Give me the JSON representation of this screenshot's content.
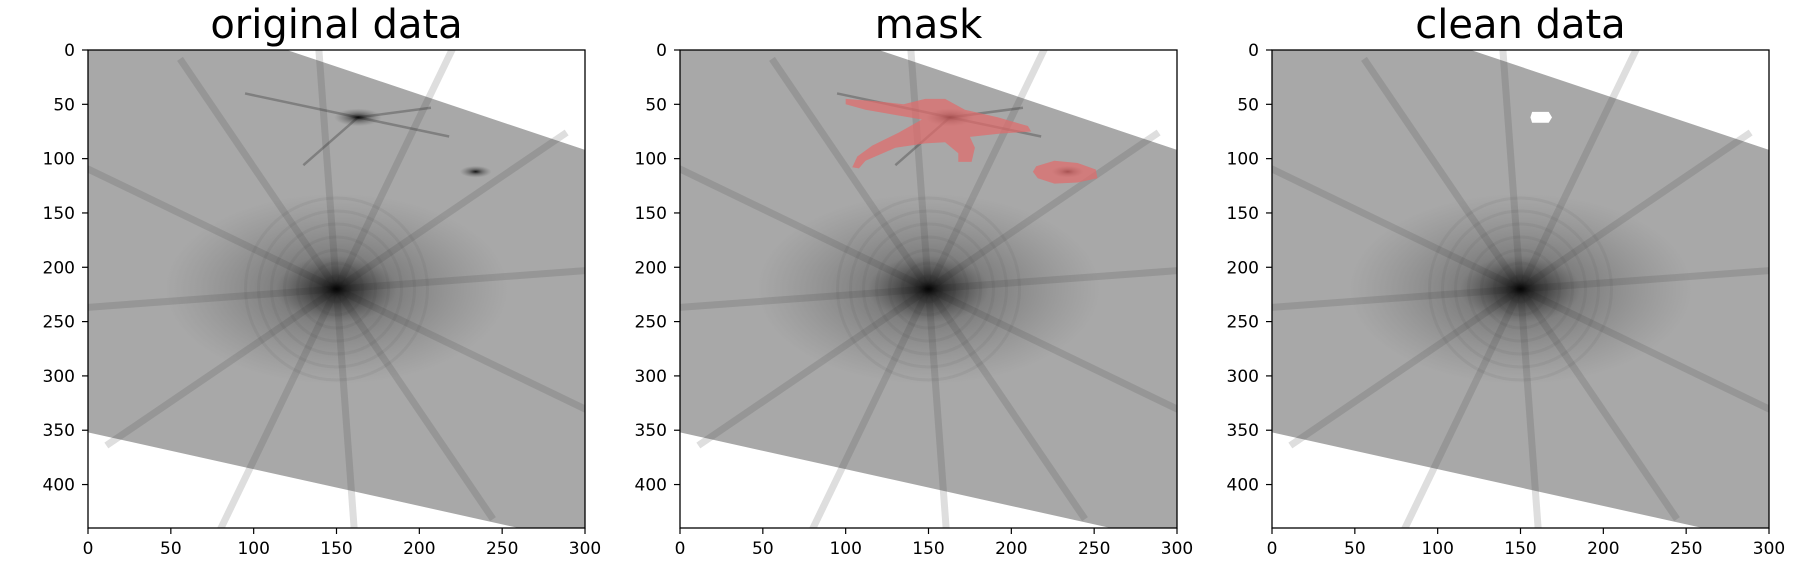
{
  "chart_data": [
    {
      "type": "heatmap",
      "title": "original data",
      "xlabel": "",
      "ylabel": "",
      "xlim": [
        0,
        300
      ],
      "ylim": [
        440,
        0
      ],
      "xticks": [
        0,
        50,
        100,
        150,
        200,
        250,
        300
      ],
      "yticks": [
        0,
        50,
        100,
        150,
        200,
        250,
        300,
        350,
        400
      ],
      "colormap": "gray_r",
      "image": {
        "valid_region_polygon": [
          [
            120,
            0
          ],
          [
            300,
            92
          ],
          [
            300,
            440
          ],
          [
            260,
            440
          ],
          [
            0,
            352
          ],
          [
            0,
            0
          ]
        ],
        "background_level": 0.34,
        "sources": [
          {
            "x": 150,
            "y": 220,
            "kind": "main-star",
            "radius": 40,
            "spikes": 6
          },
          {
            "x": 163,
            "y": 62,
            "kind": "secondary-star",
            "radius": 9
          },
          {
            "x": 234,
            "y": 112,
            "kind": "secondary-star",
            "radius": 6
          }
        ]
      }
    },
    {
      "type": "heatmap",
      "title": "mask",
      "xlabel": "",
      "ylabel": "",
      "xlim": [
        0,
        300
      ],
      "ylim": [
        440,
        0
      ],
      "xticks": [
        0,
        50,
        100,
        150,
        200,
        250,
        300
      ],
      "yticks": [
        0,
        50,
        100,
        150,
        200,
        250,
        300,
        350,
        400
      ],
      "colormap": "gray_r",
      "mask_color": "#e06b6b",
      "image": {
        "valid_region_polygon": [
          [
            120,
            0
          ],
          [
            300,
            92
          ],
          [
            300,
            440
          ],
          [
            260,
            440
          ],
          [
            0,
            352
          ],
          [
            0,
            0
          ]
        ],
        "background_level": 0.34,
        "sources": [
          {
            "x": 150,
            "y": 220,
            "kind": "main-star",
            "radius": 40,
            "spikes": 6
          },
          {
            "x": 163,
            "y": 62,
            "kind": "secondary-star",
            "radius": 9
          },
          {
            "x": 234,
            "y": 112,
            "kind": "secondary-star",
            "radius": 6
          }
        ]
      },
      "mask_regions": [
        [
          [
            100,
            45
          ],
          [
            118,
            47
          ],
          [
            135,
            50
          ],
          [
            148,
            45
          ],
          [
            160,
            45
          ],
          [
            172,
            55
          ],
          [
            192,
            62
          ],
          [
            210,
            70
          ],
          [
            212,
            75
          ],
          [
            193,
            77
          ],
          [
            175,
            80
          ],
          [
            178,
            90
          ],
          [
            176,
            103
          ],
          [
            168,
            103
          ],
          [
            168,
            95
          ],
          [
            160,
            85
          ],
          [
            148,
            86
          ],
          [
            130,
            90
          ],
          [
            112,
            102
          ],
          [
            108,
            109
          ],
          [
            104,
            108
          ],
          [
            107,
            98
          ],
          [
            116,
            88
          ],
          [
            132,
            76
          ],
          [
            146,
            64
          ],
          [
            131,
            60
          ],
          [
            112,
            55
          ],
          [
            100,
            50
          ]
        ],
        [
          [
            215,
            107
          ],
          [
            226,
            102
          ],
          [
            240,
            104
          ],
          [
            251,
            110
          ],
          [
            252,
            118
          ],
          [
            240,
            122
          ],
          [
            226,
            123
          ],
          [
            216,
            118
          ],
          [
            213,
            112
          ]
        ]
      ]
    },
    {
      "type": "heatmap",
      "title": "clean data",
      "xlabel": "",
      "ylabel": "",
      "xlim": [
        0,
        300
      ],
      "ylim": [
        440,
        0
      ],
      "xticks": [
        0,
        50,
        100,
        150,
        200,
        250,
        300
      ],
      "yticks": [
        0,
        50,
        100,
        150,
        200,
        250,
        300,
        350,
        400
      ],
      "colormap": "gray_r",
      "image": {
        "valid_region_polygon": [
          [
            120,
            0
          ],
          [
            300,
            92
          ],
          [
            300,
            440
          ],
          [
            260,
            440
          ],
          [
            0,
            352
          ],
          [
            0,
            0
          ]
        ],
        "background_level": 0.34,
        "sources": [
          {
            "x": 150,
            "y": 220,
            "kind": "main-star",
            "radius": 40,
            "spikes": 6
          }
        ]
      },
      "holes": [
        [
          [
            157,
            57
          ],
          [
            167,
            57
          ],
          [
            169,
            62
          ],
          [
            167,
            67
          ],
          [
            157,
            67
          ],
          [
            156,
            62
          ]
        ]
      ]
    }
  ]
}
